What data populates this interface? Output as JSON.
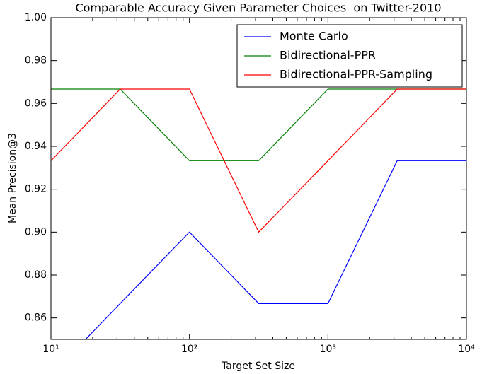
{
  "chart_data": {
    "type": "line",
    "title": "Comparable Accuracy Given Parameter Choices  on Twitter-2010",
    "x_label": "Target Set Size",
    "y_label": "Mean Precision@3",
    "x": [
      10,
      31.62,
      100,
      316.2,
      1000,
      3162,
      10000
    ],
    "series": [
      {
        "name": "Monte Carlo",
        "color": "#0000ff",
        "values": [
          0.8333,
          0.8667,
          0.9,
          0.8667,
          0.8667,
          0.9333,
          0.9333
        ]
      },
      {
        "name": "Bidirectional-PPR",
        "color": "#008000",
        "values": [
          0.9667,
          0.9667,
          0.9333,
          0.9333,
          0.9667,
          0.9667,
          0.9667
        ]
      },
      {
        "name": "Bidirectional-PPR-Sampling",
        "color": "#ff0000",
        "values": [
          0.9333,
          0.9667,
          0.9667,
          0.9,
          0.9333,
          0.9667,
          0.9667
        ]
      }
    ],
    "xlim": [
      10,
      10000
    ],
    "xticks": [
      {
        "value": 10,
        "label": "10¹"
      },
      {
        "value": 100,
        "label": "10²"
      },
      {
        "value": 1000,
        "label": "10³"
      },
      {
        "value": 10000,
        "label": "10⁴"
      }
    ],
    "x_log": true,
    "ylim": [
      0.85,
      1.0
    ],
    "yticks": [
      {
        "value": 0.86,
        "label": "0.86"
      },
      {
        "value": 0.88,
        "label": "0.88"
      },
      {
        "value": 0.9,
        "label": "0.90"
      },
      {
        "value": 0.92,
        "label": "0.92"
      },
      {
        "value": 0.94,
        "label": "0.94"
      },
      {
        "value": 0.96,
        "label": "0.96"
      },
      {
        "value": 0.98,
        "label": "0.98"
      },
      {
        "value": 1.0,
        "label": "1.00"
      }
    ],
    "legend": "upper right"
  }
}
